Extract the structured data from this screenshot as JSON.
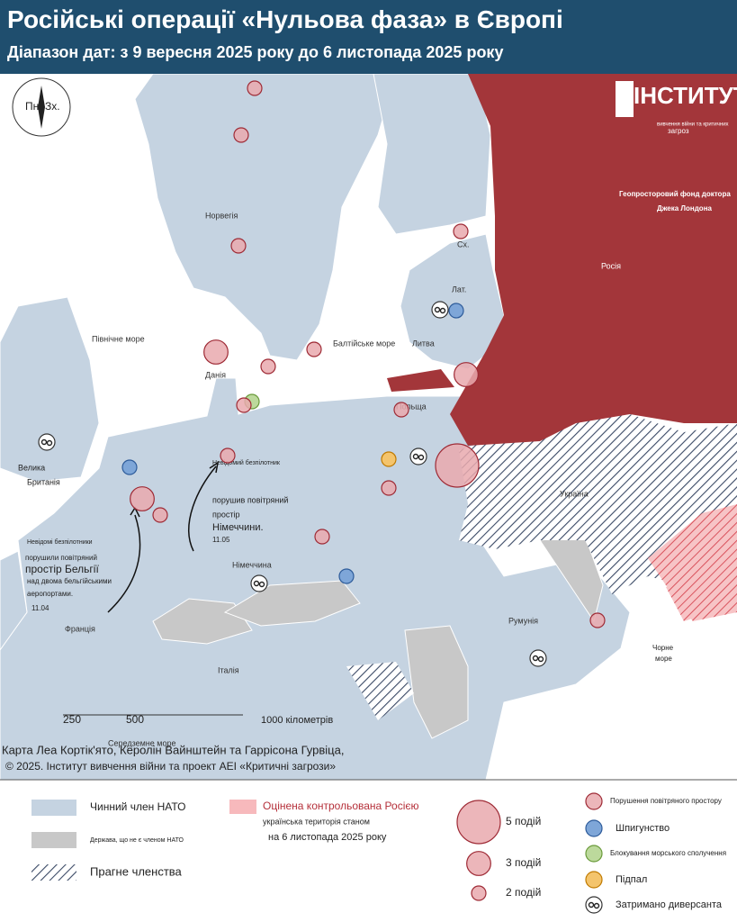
{
  "header": {
    "title": "Російські операції «Нульова фаза» в Європі",
    "subtitle": "Діапазон дат: з 9 вересня 2025 року до 6 листопада 2025 року"
  },
  "compass": [
    "Пн.",
    "Зх."
  ],
  "logo": {
    "name": "ІНСТИТУТ",
    "lines": [
      "вивчення війни та критичних",
      "загроз"
    ],
    "partner": [
      "Геопросторовий фонд доктора",
      "Джека Лондона"
    ]
  },
  "places": {
    "norway": "Норвегія",
    "estonia": "Сх.",
    "latvia": "Лат.",
    "lithuania": "Литва",
    "poland": "Польща",
    "russia": "Росія",
    "ukraine": "Україна",
    "denmark": "Данія",
    "north_sea": "Північне море",
    "baltic_sea": "Балтійське море",
    "uk": [
      "Велика",
      "Британія"
    ],
    "germany": "Німеччина",
    "france": "Франція",
    "italy": "Італія",
    "romania": "Румунія",
    "black_sea": [
      "Чорне",
      "море"
    ],
    "med_sea": "Середземне море"
  },
  "annotations": [
    {
      "lines": [
        "Невідомі безпілотники",
        "порушили повітряний",
        "простір Бельгії",
        "над двома бельгійськими",
        "аеропортами.",
        "11.04"
      ]
    },
    {
      "lines": [
        "Невідомий безпілотник",
        "порушив повітряний",
        "простір",
        "Німеччини.",
        "11.05"
      ]
    }
  ],
  "scale": [
    "250",
    "500",
    "1000 кілометрів"
  ],
  "credits": [
    "Карта Леа Кортік'ято, Керолін Вайнштейн та Гаррісона Гурвіца,",
    "© 2025. Інститут вивчення війни та проект AEI «Критичні загрози»"
  ],
  "events": [
    {
      "kind": "airspace",
      "count": 2
    },
    {
      "kind": "airspace",
      "count": 2
    },
    {
      "kind": "airspace",
      "count": 2
    },
    {
      "kind": "airspace",
      "count": 3
    },
    {
      "kind": "airspace",
      "count": 2
    },
    {
      "kind": "airspace",
      "count": 2
    },
    {
      "kind": "airspace",
      "count": 2
    },
    {
      "kind": "espionage",
      "count": 2
    },
    {
      "kind": "airspace",
      "count": 3
    },
    {
      "kind": "airspace",
      "count": 2
    },
    {
      "kind": "arson",
      "count": 2
    },
    {
      "kind": "airspace",
      "count": 2
    },
    {
      "kind": "airspace",
      "count": 5
    },
    {
      "kind": "blockade",
      "count": 2
    },
    {
      "kind": "airspace",
      "count": 2
    },
    {
      "kind": "espionage",
      "count": 2
    },
    {
      "kind": "airspace",
      "count": 3
    },
    {
      "kind": "airspace",
      "count": 2
    },
    {
      "kind": "airspace",
      "count": 2
    },
    {
      "kind": "airspace",
      "count": 2
    },
    {
      "kind": "espionage",
      "count": 2
    },
    {
      "kind": "airspace",
      "count": 2
    },
    {
      "kind": "saboteur"
    },
    {
      "kind": "saboteur"
    },
    {
      "kind": "saboteur"
    },
    {
      "kind": "saboteur"
    },
    {
      "kind": "saboteur"
    }
  ],
  "legend": {
    "nato": "Чинний член НАТО",
    "non_nato": "Держава, що не є членом НАТО",
    "aspiring": "Прагне членства",
    "occupied": [
      "Оцінена контрольована Росією",
      "українська територія станом",
      "на 6 листопада 2025 року"
    ],
    "sizes": [
      {
        "count": 5,
        "label": "5 подій"
      },
      {
        "count": 3,
        "label": "3 подій"
      },
      {
        "count": 2,
        "label": "2 подій"
      }
    ],
    "kinds": {
      "airspace": {
        "label": "Порушення повітряного простору",
        "fill": "#e9a9ae",
        "stroke": "#9e2a35"
      },
      "espionage": {
        "label": "Шпигунство",
        "fill": "#7ea6d8",
        "stroke": "#2d5b9a"
      },
      "blockade": {
        "label": "Блокування морського сполучення",
        "fill": "#bcd99c",
        "stroke": "#6a9a3a"
      },
      "arson": {
        "label": "Підпал",
        "fill": "#f4c46c",
        "stroke": "#c07a00"
      },
      "saboteur": {
        "label": "Затримано диверсанта",
        "fill": "#ffffff",
        "stroke": "#333333"
      }
    }
  }
}
